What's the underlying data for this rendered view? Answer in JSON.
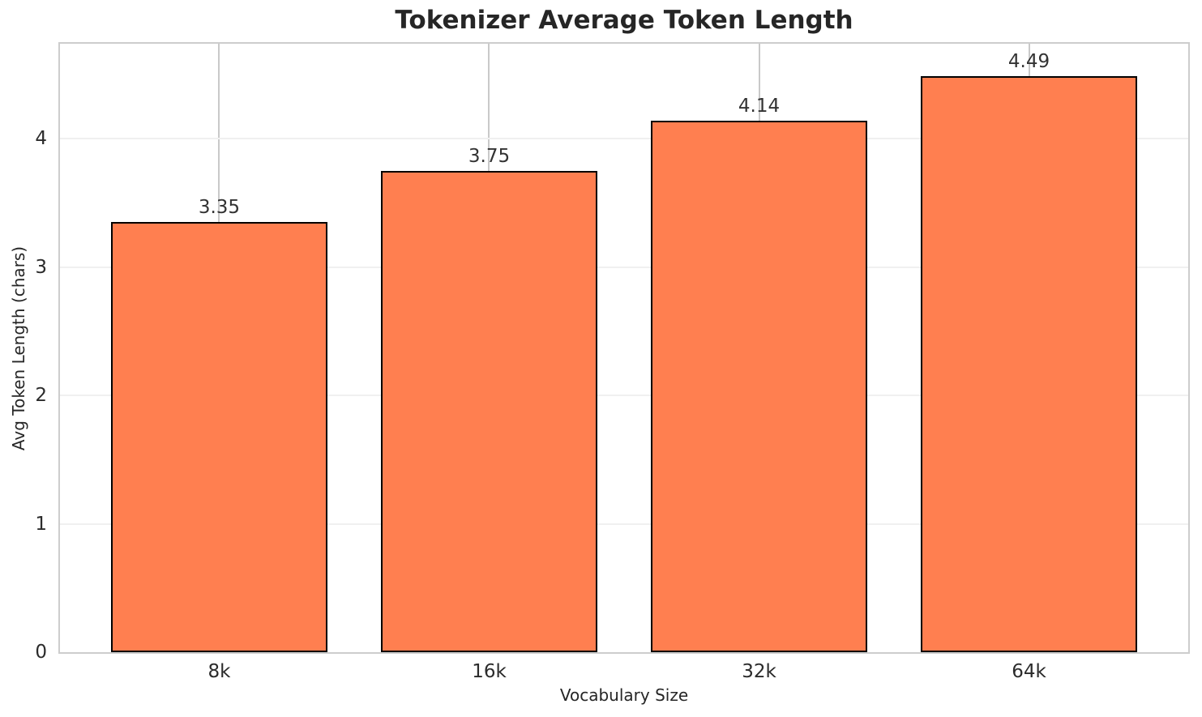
{
  "chart_data": {
    "type": "bar",
    "title": "Tokenizer Average Token Length",
    "xlabel": "Vocabulary Size",
    "ylabel": "Avg Token Length (chars)",
    "categories": [
      "8k",
      "16k",
      "32k",
      "64k"
    ],
    "values": [
      3.35,
      3.75,
      4.14,
      4.49
    ],
    "bar_labels": [
      "3.35",
      "3.75",
      "4.14",
      "4.49"
    ],
    "yticks": [
      0,
      1,
      2,
      3,
      4
    ],
    "ylim": [
      0,
      4.74
    ],
    "grid": true,
    "legend": "none",
    "colors": {
      "bar_fill": "#FF7F50",
      "bar_edge": "#000000",
      "gridline_horizontal": "#f0f0f0",
      "gridline_vertical": "#c9c9c9",
      "spine": "#cdcdcd",
      "title_text": "#262626",
      "tick_text": "#2b2b2b"
    }
  }
}
